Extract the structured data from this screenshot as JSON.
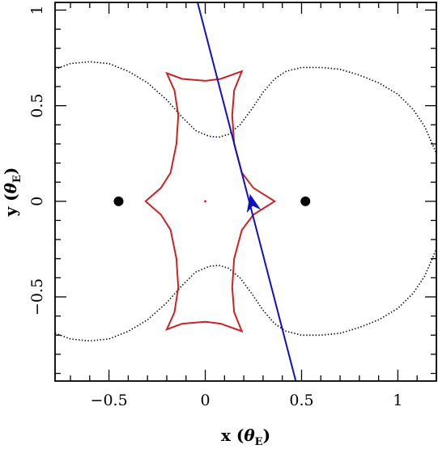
{
  "chart_data": {
    "type": "line",
    "title": "",
    "xlabel": "x (θE)",
    "xlabel_main": "x",
    "xlabel_unit": "θ",
    "xlabel_sub": "E",
    "ylabel": "y (θE)",
    "ylabel_main": "y",
    "ylabel_unit": "θ",
    "ylabel_sub": "E",
    "xlim": [
      -0.78,
      1.2
    ],
    "ylim": [
      -0.94,
      1.04
    ],
    "x_ticks": [
      -0.5,
      0,
      0.5,
      1
    ],
    "x_tick_labels": [
      "−0.5",
      "0",
      "0.5",
      "1"
    ],
    "y_ticks": [
      -0.5,
      0,
      0.5,
      1
    ],
    "y_tick_labels": [
      "−0.5",
      "0",
      "0.5",
      "1"
    ],
    "grid": false,
    "legend": "none",
    "colors": {
      "caustic": "#cc2222",
      "critical_curve": "#000000",
      "source_trajectory": "#1010c0",
      "lens": "#000000"
    },
    "lenses": [
      {
        "x": -0.45,
        "y": 0.0
      },
      {
        "x": 0.52,
        "y": 0.0
      }
    ],
    "caustic_center": {
      "x": 0.0,
      "y": 0.0
    },
    "caustic": [
      [
        -0.2,
        0.67
      ],
      [
        -0.12,
        0.64
      ],
      [
        0.0,
        0.63
      ],
      [
        0.08,
        0.64
      ],
      [
        0.19,
        0.68
      ],
      [
        0.15,
        0.58
      ],
      [
        0.14,
        0.45
      ],
      [
        0.15,
        0.3
      ],
      [
        0.19,
        0.15
      ],
      [
        0.25,
        0.07
      ],
      [
        0.36,
        0.0
      ],
      [
        0.25,
        -0.07
      ],
      [
        0.19,
        -0.15
      ],
      [
        0.15,
        -0.3
      ],
      [
        0.14,
        -0.45
      ],
      [
        0.15,
        -0.58
      ],
      [
        0.19,
        -0.68
      ],
      [
        0.08,
        -0.64
      ],
      [
        0.0,
        -0.63
      ],
      [
        -0.12,
        -0.64
      ],
      [
        -0.2,
        -0.67
      ],
      [
        -0.16,
        -0.58
      ],
      [
        -0.14,
        -0.45
      ],
      [
        -0.15,
        -0.3
      ],
      [
        -0.18,
        -0.15
      ],
      [
        -0.23,
        -0.07
      ],
      [
        -0.31,
        0.0
      ],
      [
        -0.23,
        0.07
      ],
      [
        -0.18,
        0.15
      ],
      [
        -0.15,
        0.3
      ],
      [
        -0.14,
        0.45
      ],
      [
        -0.16,
        0.58
      ],
      [
        -0.2,
        0.67
      ]
    ],
    "critical_curve_upper": [
      [
        -0.78,
        0.69
      ],
      [
        -0.7,
        0.72
      ],
      [
        -0.6,
        0.73
      ],
      [
        -0.5,
        0.72
      ],
      [
        -0.4,
        0.68
      ],
      [
        -0.3,
        0.62
      ],
      [
        -0.2,
        0.53
      ],
      [
        -0.12,
        0.44
      ],
      [
        -0.05,
        0.37
      ],
      [
        0.02,
        0.34
      ],
      [
        0.07,
        0.335
      ],
      [
        0.12,
        0.35
      ],
      [
        0.18,
        0.4
      ],
      [
        0.24,
        0.48
      ],
      [
        0.3,
        0.57
      ],
      [
        0.36,
        0.64
      ],
      [
        0.42,
        0.68
      ],
      [
        0.5,
        0.7
      ],
      [
        0.6,
        0.7
      ],
      [
        0.7,
        0.69
      ],
      [
        0.8,
        0.66
      ],
      [
        0.9,
        0.62
      ],
      [
        1.0,
        0.56
      ],
      [
        1.08,
        0.48
      ],
      [
        1.14,
        0.39
      ],
      [
        1.2,
        0.25
      ]
    ],
    "critical_curve_lower": [
      [
        -0.78,
        -0.69
      ],
      [
        -0.7,
        -0.72
      ],
      [
        -0.6,
        -0.73
      ],
      [
        -0.5,
        -0.72
      ],
      [
        -0.4,
        -0.68
      ],
      [
        -0.3,
        -0.62
      ],
      [
        -0.2,
        -0.53
      ],
      [
        -0.12,
        -0.44
      ],
      [
        -0.05,
        -0.37
      ],
      [
        0.02,
        -0.34
      ],
      [
        0.07,
        -0.335
      ],
      [
        0.12,
        -0.35
      ],
      [
        0.18,
        -0.4
      ],
      [
        0.24,
        -0.48
      ],
      [
        0.3,
        -0.57
      ],
      [
        0.36,
        -0.64
      ],
      [
        0.42,
        -0.68
      ],
      [
        0.5,
        -0.7
      ],
      [
        0.6,
        -0.7
      ],
      [
        0.7,
        -0.69
      ],
      [
        0.8,
        -0.66
      ],
      [
        0.9,
        -0.62
      ],
      [
        1.0,
        -0.56
      ],
      [
        1.08,
        -0.48
      ],
      [
        1.14,
        -0.39
      ],
      [
        1.2,
        -0.25
      ]
    ],
    "critical_curve_right": [
      [
        1.2,
        0.25
      ],
      [
        1.2,
        -0.25
      ]
    ],
    "source_trajectory": {
      "start": [
        -0.04,
        1.04
      ],
      "end": [
        0.47,
        -0.94
      ],
      "arrow_at": [
        0.245,
        -0.02
      ],
      "arrow_direction": [
        -0.22,
        1.0
      ]
    }
  }
}
